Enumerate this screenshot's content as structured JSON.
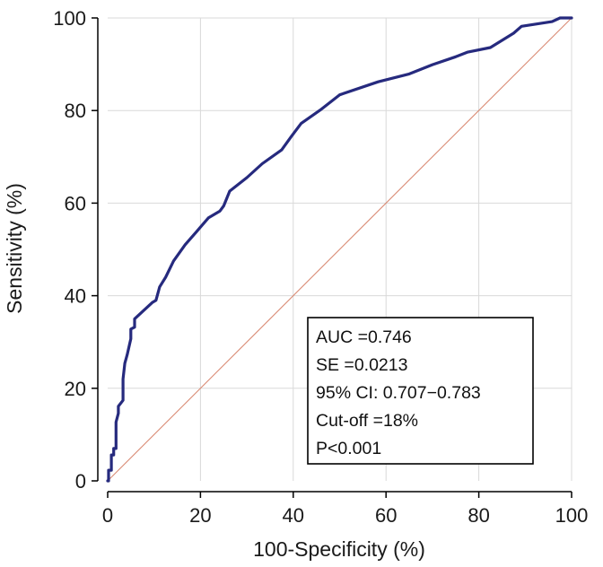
{
  "chart_data": {
    "type": "line",
    "title": "",
    "xlabel": "100-Specificity (%)",
    "ylabel": "Sensitivity (%)",
    "xlim": [
      0,
      100
    ],
    "ylim": [
      0,
      100
    ],
    "xticks": [
      0,
      20,
      40,
      60,
      80,
      100
    ],
    "yticks": [
      0,
      20,
      40,
      60,
      80,
      100
    ],
    "grid": true,
    "colors": {
      "roc": "#262a7e",
      "reference": "#d98a73",
      "grid": "#d9d9d9",
      "axis": "#000000"
    },
    "series": [
      {
        "x": [
          0,
          0.2,
          0.2,
          0.8,
          0.8,
          1.3,
          1.3,
          1.8,
          1.8,
          2.3,
          2.3,
          3.3,
          3.3,
          3.7,
          4.2,
          5.0,
          5.0,
          5.8,
          5.8,
          9.6,
          10.4,
          11.2,
          12.5,
          14.2,
          16.7,
          19.2,
          21.7,
          24.2,
          25.0,
          26.3,
          30.0,
          33.3,
          37.5,
          39.6,
          41.7,
          45.8,
          50.0,
          58.3,
          65.0,
          70.0,
          75.0,
          77.5,
          82.5,
          87.5,
          89.2,
          95.8,
          97.5,
          100
        ],
        "y": [
          0,
          0,
          2.3,
          2.3,
          5.6,
          5.6,
          7.0,
          7.0,
          12.7,
          14.6,
          16.1,
          17.4,
          22.0,
          25.4,
          27.2,
          30.7,
          32.8,
          33.2,
          35.0,
          38.5,
          39.0,
          41.9,
          44.0,
          47.5,
          51.0,
          53.9,
          56.8,
          58.3,
          59.4,
          62.6,
          65.5,
          68.5,
          71.5,
          74.4,
          77.2,
          80.1,
          83.4,
          86.2,
          87.9,
          89.9,
          91.6,
          92.6,
          93.6,
          96.7,
          98.2,
          99.2,
          100,
          100
        ]
      },
      {
        "x": [
          0,
          100
        ],
        "y": [
          0,
          100
        ]
      }
    ],
    "annotation": {
      "lines": [
        "AUC =0.746",
        "SE =0.0213",
        "95% CI: 0.707−0.783",
        "Cut-off =18%",
        "P<0.001"
      ]
    }
  }
}
